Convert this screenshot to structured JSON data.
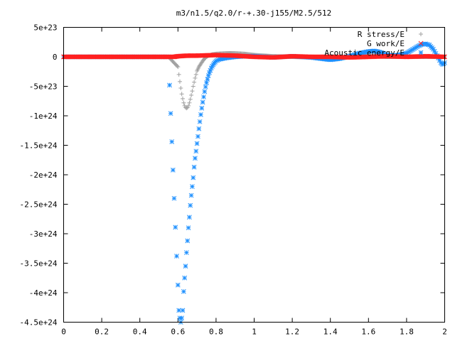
{
  "chart_data": {
    "type": "scatter",
    "title": "m3/n1.5/q2.0/r-+.30-j155/M2.5/512",
    "xlabel": "",
    "ylabel": "",
    "xlim": [
      0,
      2
    ],
    "ylim": [
      -4.5e+24,
      5e+23
    ],
    "x_ticks": [
      0,
      0.2,
      0.4,
      0.6,
      0.8,
      1,
      1.2,
      1.4,
      1.6,
      1.8,
      2
    ],
    "x_tick_labels": [
      "0",
      "0.2",
      "0.4",
      "0.6",
      "0.8",
      "1",
      "1.2",
      "1.4",
      "1.6",
      "1.8",
      "2"
    ],
    "y_ticks": [
      5e+23,
      0,
      -5e+23,
      -1e+24,
      -1.5e+24,
      -2e+24,
      -2.5e+24,
      -3e+24,
      -3.5e+24,
      -4e+24,
      -4.5e+24
    ],
    "y_tick_labels": [
      "5e+23",
      "0",
      "-5e+23",
      "-1e+24",
      "-1.5e+24",
      "-2e+24",
      "-2.5e+24",
      "-3e+24",
      "-3.5e+24",
      "-4e+24",
      "-4.5e+24"
    ],
    "grid": false,
    "legend_position": "top-right",
    "series": [
      {
        "name": "R stress/E",
        "marker": "+",
        "color": "#a0a0a0",
        "points": [
          [
            0,
            0
          ],
          [
            0.1,
            0
          ],
          [
            0.2,
            0
          ],
          [
            0.3,
            0
          ],
          [
            0.4,
            0
          ],
          [
            0.5,
            0
          ],
          [
            0.55,
            0
          ],
          [
            0.6,
            -1.7e+23
          ],
          [
            0.605,
            -3e+23
          ],
          [
            0.61,
            -4.2e+23
          ],
          [
            0.615,
            -5.3e+23
          ],
          [
            0.62,
            -6.3e+23
          ],
          [
            0.625,
            -7.1e+23
          ],
          [
            0.63,
            -7.8e+23
          ],
          [
            0.635,
            -8.3e+23
          ],
          [
            0.64,
            -8.6e+23
          ],
          [
            0.645,
            -8.7e+23
          ],
          [
            0.65,
            -8.6e+23
          ],
          [
            0.655,
            -8.3e+23
          ],
          [
            0.66,
            -7.8e+23
          ],
          [
            0.665,
            -7.2e+23
          ],
          [
            0.67,
            -6.5e+23
          ],
          [
            0.675,
            -5.8e+23
          ],
          [
            0.68,
            -5e+23
          ],
          [
            0.685,
            -4.3e+23
          ],
          [
            0.69,
            -3.6e+23
          ],
          [
            0.695,
            -3e+23
          ],
          [
            0.7,
            -2.4e+23
          ],
          [
            0.71,
            -1.7e+23
          ],
          [
            0.72,
            -1.2e+23
          ],
          [
            0.73,
            -7e+22
          ],
          [
            0.74,
            -3e+22
          ],
          [
            0.75,
            0
          ],
          [
            0.76,
            2e+22
          ],
          [
            0.78,
            4e+22
          ],
          [
            0.8,
            5e+22
          ],
          [
            0.85,
            6e+22
          ],
          [
            0.9,
            6e+22
          ],
          [
            0.95,
            5e+22
          ],
          [
            1.0,
            3e+22
          ],
          [
            1.05,
            2e+22
          ],
          [
            1.1,
            1e+22
          ],
          [
            1.2,
            0
          ],
          [
            1.3,
            -1e+22
          ],
          [
            1.4,
            -2e+22
          ],
          [
            1.5,
            0
          ],
          [
            1.6,
            1e+22
          ],
          [
            1.7,
            0
          ],
          [
            1.8,
            0
          ],
          [
            1.9,
            0
          ],
          [
            1.95,
            0
          ],
          [
            2.0,
            0
          ]
        ]
      },
      {
        "name": "G work/E",
        "marker": "x",
        "color": "#ff2020",
        "points": [
          [
            0,
            0
          ],
          [
            0.2,
            0
          ],
          [
            0.4,
            0
          ],
          [
            0.58,
            0
          ],
          [
            0.6,
            1e+22
          ],
          [
            0.65,
            2e+22
          ],
          [
            0.7,
            2e+22
          ],
          [
            0.8,
            3e+22
          ],
          [
            0.9,
            2e+22
          ],
          [
            1.0,
            0
          ],
          [
            1.1,
            -1e+22
          ],
          [
            1.2,
            1e+22
          ],
          [
            1.3,
            0
          ],
          [
            1.4,
            0
          ],
          [
            1.5,
            -1e+22
          ],
          [
            1.6,
            0
          ],
          [
            1.7,
            1e+22
          ],
          [
            1.8,
            0
          ],
          [
            1.9,
            1e+22
          ],
          [
            2.0,
            0
          ]
        ]
      },
      {
        "name": "Acoustic energy/E",
        "marker": "*",
        "color": "#1e90ff",
        "points": [
          [
            0,
            0
          ],
          [
            0.1,
            0
          ],
          [
            0.2,
            0
          ],
          [
            0.3,
            0
          ],
          [
            0.4,
            0
          ],
          [
            0.5,
            0
          ],
          [
            0.55,
            0
          ],
          [
            0.58,
            -2.4e+24
          ],
          [
            0.6,
            -3.87e+24
          ],
          [
            0.605,
            -4.3e+24
          ],
          [
            0.61,
            -4.43e+24
          ],
          [
            0.615,
            -4.5e+24
          ],
          [
            0.62,
            -4.43e+24
          ],
          [
            0.625,
            -4.3e+24
          ],
          [
            0.63,
            -3.98e+24
          ],
          [
            0.635,
            -3.75e+24
          ],
          [
            0.64,
            -3.55e+24
          ],
          [
            0.645,
            -3.32e+24
          ],
          [
            0.65,
            -3.12e+24
          ],
          [
            0.655,
            -2.9e+24
          ],
          [
            0.66,
            -2.72e+24
          ],
          [
            0.665,
            -2.52e+24
          ],
          [
            0.67,
            -2.35e+24
          ],
          [
            0.675,
            -2.2e+24
          ],
          [
            0.68,
            -2.05e+24
          ],
          [
            0.685,
            -1.87e+24
          ],
          [
            0.69,
            -1.72e+24
          ],
          [
            0.695,
            -1.6e+24
          ],
          [
            0.7,
            -1.47e+24
          ],
          [
            0.705,
            -1.35e+24
          ],
          [
            0.71,
            -1.22e+24
          ],
          [
            0.715,
            -1.1e+24
          ],
          [
            0.72,
            -9.8e+23
          ],
          [
            0.725,
            -8.7e+23
          ],
          [
            0.73,
            -7.7e+23
          ],
          [
            0.735,
            -6.8e+23
          ],
          [
            0.74,
            -5.9e+23
          ],
          [
            0.745,
            -5.1e+23
          ],
          [
            0.75,
            -4.4e+23
          ],
          [
            0.755,
            -3.8e+23
          ],
          [
            0.76,
            -3.2e+23
          ],
          [
            0.765,
            -2.7e+23
          ],
          [
            0.77,
            -2.3e+23
          ],
          [
            0.775,
            -1.9e+23
          ],
          [
            0.78,
            -1.6e+23
          ],
          [
            0.79,
            -1.1e+23
          ],
          [
            0.8,
            -7e+22
          ],
          [
            0.82,
            -4e+22
          ],
          [
            0.85,
            -2e+22
          ],
          [
            0.9,
            0
          ],
          [
            0.95,
            1e+22
          ],
          [
            1.0,
            1e+22
          ],
          [
            1.05,
            0
          ],
          [
            1.1,
            -1e+22
          ],
          [
            1.15,
            0
          ],
          [
            1.2,
            1e+22
          ],
          [
            1.25,
            0
          ],
          [
            1.3,
            -1e+22
          ],
          [
            1.35,
            -3e+22
          ],
          [
            1.4,
            -5e+22
          ],
          [
            1.45,
            -3e+22
          ],
          [
            1.5,
            1e+22
          ],
          [
            1.55,
            6e+22
          ],
          [
            1.6,
            9e+22
          ],
          [
            1.63,
            1e+23
          ],
          [
            1.67,
            7e+22
          ],
          [
            1.7,
            3e+22
          ],
          [
            1.73,
            2e+22
          ],
          [
            1.76,
            3e+22
          ],
          [
            1.8,
            6e+22
          ],
          [
            1.83,
            1.2e+23
          ],
          [
            1.86,
            1.8e+23
          ],
          [
            1.88,
            2.1e+23
          ],
          [
            1.9,
            2.2e+23
          ],
          [
            1.92,
            2e+23
          ],
          [
            1.94,
            1.3e+23
          ],
          [
            1.96,
            2e+22
          ],
          [
            1.98,
            -1e+23
          ],
          [
            1.99,
            -1.3e+23
          ],
          [
            2.0,
            -1e+23
          ]
        ]
      }
    ]
  }
}
